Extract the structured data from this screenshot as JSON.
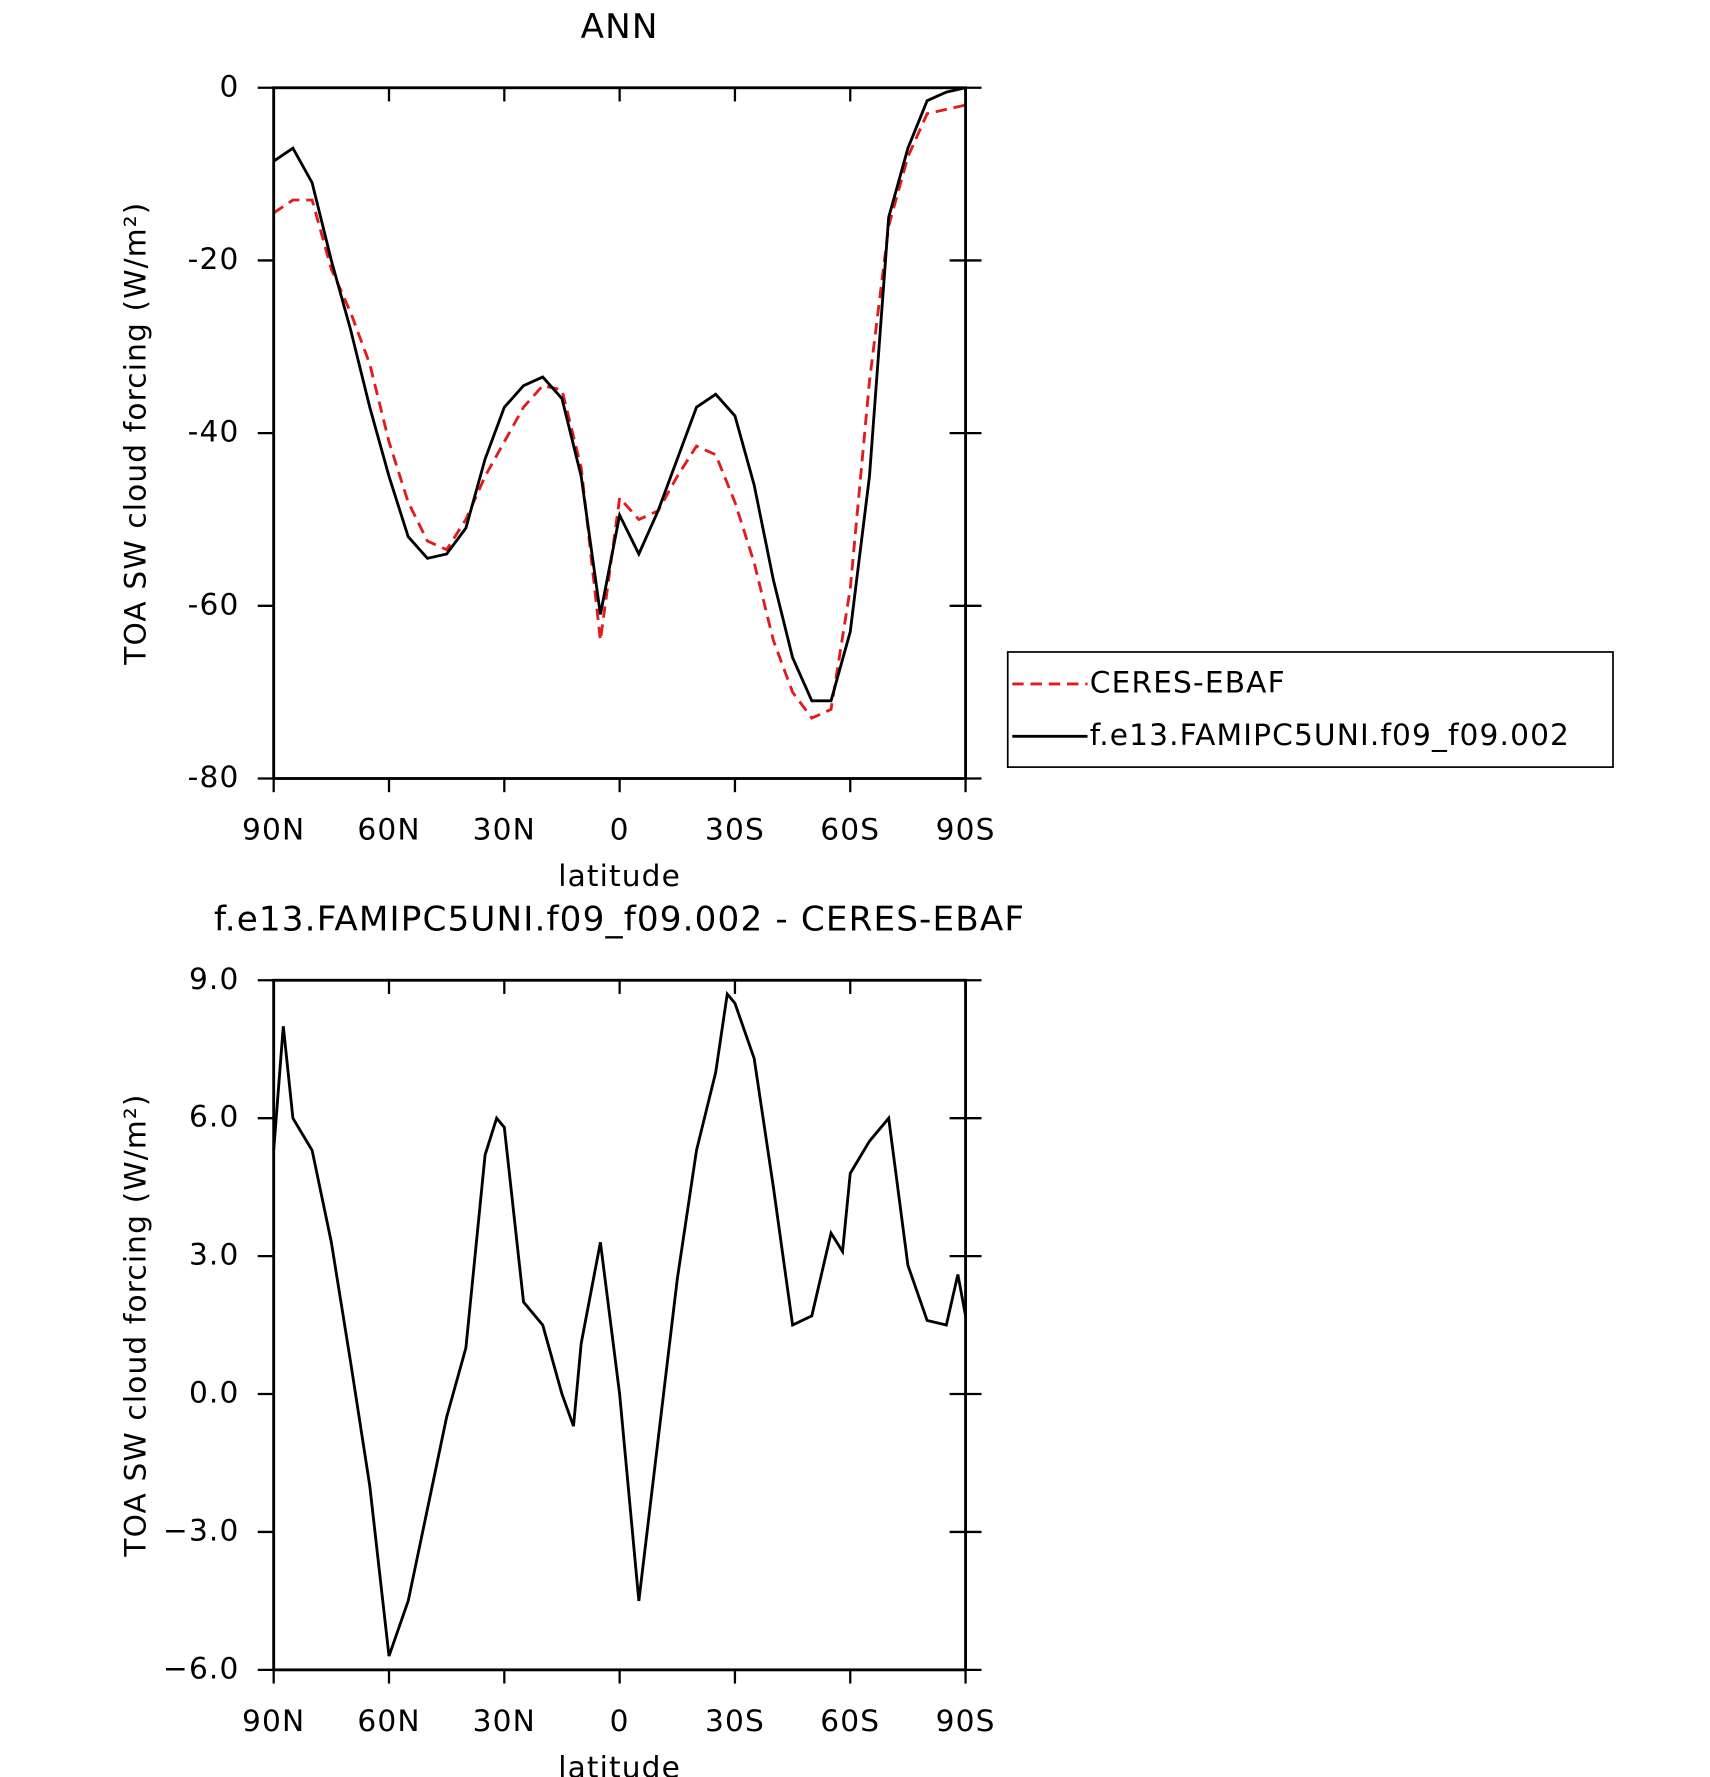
{
  "chart_data": [
    {
      "type": "line",
      "title": "ANN",
      "xlabel": "latitude",
      "ylabel": "TOA SW cloud forcing (W/m²)",
      "x": [
        90,
        85,
        80,
        75,
        70,
        65,
        60,
        55,
        50,
        45,
        40,
        35,
        30,
        25,
        20,
        15,
        10,
        5,
        0,
        -5,
        -10,
        -15,
        -20,
        -25,
        -30,
        -35,
        -40,
        -45,
        -50,
        -55,
        -60,
        -65,
        -70,
        -75,
        -80,
        -85,
        -90
      ],
      "series": [
        {
          "name": "CERES-EBAF",
          "color": "#e41a1c",
          "dashed": true,
          "values": [
            -14.5,
            -13,
            -13,
            -21,
            -26,
            -32,
            -41,
            -48,
            -52.5,
            -53.5,
            -50,
            -45,
            -41,
            -37,
            -34.5,
            -35,
            -44,
            -64,
            -47.5,
            -50,
            -49,
            -45,
            -41.5,
            -42.5,
            -48,
            -55,
            -64,
            -70,
            -73,
            -72,
            -58,
            -34,
            -16,
            -8,
            -3,
            -2.5,
            -2
          ]
        },
        {
          "name": "f.e13.FAMIPC5UNI.f09_f09.002",
          "color": "#000000",
          "dashed": false,
          "values": [
            -8.5,
            -7,
            -11,
            -20,
            -28,
            -37,
            -45,
            -52,
            -54.5,
            -54,
            -51,
            -43,
            -37,
            -34.5,
            -33.5,
            -36,
            -45,
            -61,
            -49.5,
            -54,
            -49,
            -43,
            -37,
            -35.5,
            -38,
            -46,
            -57,
            -66,
            -71,
            -71,
            -63,
            -45,
            -15,
            -7,
            -1.5,
            -0.5,
            0
          ]
        }
      ],
      "xlim": [
        90,
        -90
      ],
      "xticks": [
        {
          "value": 90,
          "label": "90N"
        },
        {
          "value": 60,
          "label": "60N"
        },
        {
          "value": 30,
          "label": "30N"
        },
        0,
        {
          "value": -30,
          "label": "30S"
        },
        {
          "value": -60,
          "label": "60S"
        },
        {
          "value": -90,
          "label": "90S"
        }
      ],
      "ylim": [
        -80,
        0
      ],
      "yticks": [
        -80,
        -60,
        -40,
        -20,
        0
      ],
      "grid": false,
      "legend": "right"
    },
    {
      "type": "line",
      "title": "f.e13.FAMIPC5UNI.f09_f09.002 - CERES-EBAF",
      "xlabel": "latitude",
      "ylabel": "TOA SW cloud forcing (W/m²)",
      "x": [
        90,
        87.5,
        85,
        80,
        75,
        70,
        65,
        60,
        55,
        50,
        45,
        40,
        35,
        32,
        30,
        25,
        20,
        15,
        12,
        10,
        5,
        0,
        -5,
        -10,
        -15,
        -20,
        -25,
        -28,
        -30,
        -35,
        -40,
        -45,
        -50,
        -55,
        -58,
        -60,
        -65,
        -70,
        -75,
        -80,
        -85,
        -88,
        -90
      ],
      "series": [
        {
          "color": "#000000",
          "dashed": false,
          "values": [
            5.3,
            8.0,
            6.0,
            5.3,
            3.3,
            0.7,
            -2.0,
            -5.7,
            -4.5,
            -2.5,
            -0.5,
            1.0,
            5.2,
            6.0,
            5.8,
            2.0,
            1.5,
            0.0,
            -0.7,
            1.1,
            3.3,
            0.0,
            -4.5,
            -1.0,
            2.5,
            5.3,
            7.0,
            8.7,
            8.5,
            7.3,
            4.5,
            1.5,
            1.7,
            3.5,
            3.1,
            4.8,
            5.5,
            6.0,
            2.8,
            1.6,
            1.5,
            2.6,
            1.7
          ]
        }
      ],
      "xlim": [
        90,
        -90
      ],
      "xticks": [
        {
          "value": 90,
          "label": "90N"
        },
        {
          "value": 60,
          "label": "60N"
        },
        {
          "value": 30,
          "label": "30N"
        },
        0,
        {
          "value": -30,
          "label": "30S"
        },
        {
          "value": -60,
          "label": "60S"
        },
        {
          "value": -90,
          "label": "90S"
        }
      ],
      "ylim": [
        -6,
        9
      ],
      "yticks": [
        {
          "value": -6,
          "label": "−6.0"
        },
        {
          "value": -3,
          "label": "−3.0"
        },
        {
          "value": 0,
          "label": "0.0"
        },
        {
          "value": 3,
          "label": "3.0"
        },
        {
          "value": 6,
          "label": "6.0"
        },
        {
          "value": 9,
          "label": "9.0"
        }
      ],
      "grid": false
    }
  ]
}
